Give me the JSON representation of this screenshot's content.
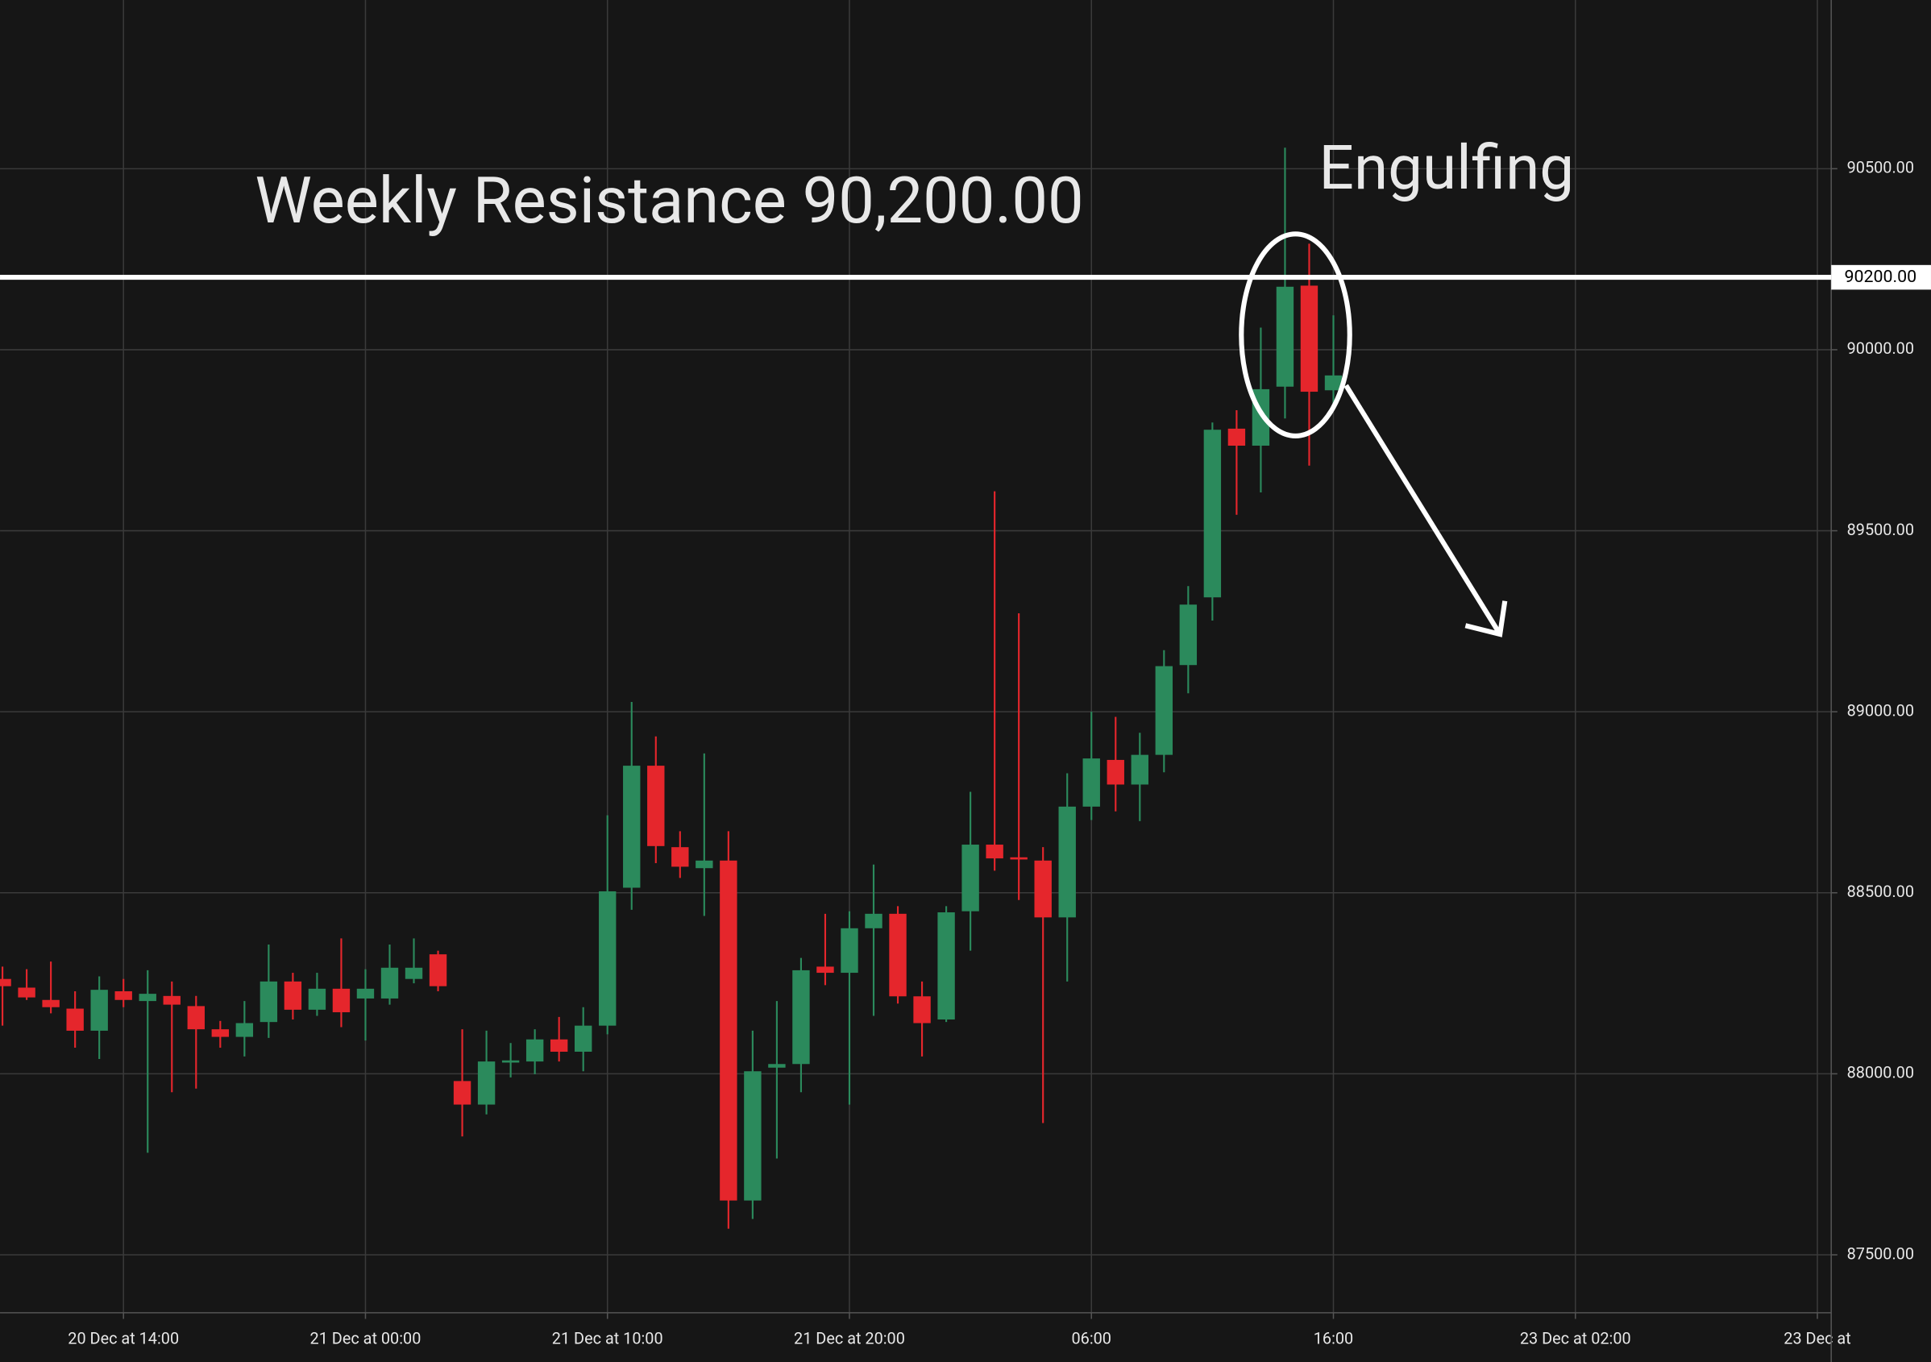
{
  "chart_data": {
    "type": "candlestick",
    "categories": [
      null,
      null,
      null,
      null,
      null,
      "20 Dec at 14:00",
      null,
      null,
      null,
      null,
      null,
      null,
      null,
      null,
      null,
      "21 Dec at 00:00",
      null,
      null,
      null,
      null,
      null,
      null,
      null,
      null,
      null,
      "21 Dec at 10:00",
      null,
      null,
      null,
      null,
      null,
      null,
      null,
      null,
      null,
      "21 Dec at 20:00",
      null,
      null,
      null,
      null,
      null,
      null,
      null,
      null,
      null,
      "06:00",
      null,
      null,
      null,
      null,
      null,
      null,
      null,
      null,
      null,
      "16:00",
      null,
      null,
      null,
      null,
      null,
      null,
      null,
      null,
      null,
      "23 Dec at 02:00",
      null,
      null,
      null,
      null,
      null,
      null,
      null,
      null,
      null,
      "23 Dec at"
    ],
    "open": [
      88262,
      88238,
      88204,
      88180,
      88119,
      88228,
      88201,
      88215,
      88187,
      88123,
      88102,
      88143,
      88255,
      88177,
      88235,
      88208,
      88208,
      88262,
      88330,
      87980,
      87915,
      88031,
      88034,
      88095,
      88061,
      88133,
      88514,
      88851,
      88626,
      88568,
      88589,
      87650,
      88017,
      88027,
      88296,
      88279,
      88402,
      88442,
      88214,
      88150,
      88449,
      88633,
      88598,
      88589,
      88432,
      88738,
      88867,
      88799,
      88881,
      89129,
      89316,
      89782,
      89735,
      89898,
      90177,
      89888,
      null,
      null,
      null,
      null,
      null,
      null,
      null,
      null,
      null,
      null,
      null,
      null,
      null,
      null,
      null,
      null,
      null,
      null,
      null,
      null
    ],
    "high": [
      88296,
      88289,
      88310,
      88228,
      88269,
      88262,
      88286,
      88255,
      88215,
      88146,
      88201,
      88357,
      88279,
      88279,
      88374,
      88289,
      88357,
      88374,
      88340,
      88123,
      88119,
      88085,
      88123,
      88157,
      88184,
      88714,
      89027,
      88932,
      88670,
      88885,
      88670,
      88119,
      88201,
      88320,
      88442,
      88449,
      88578,
      88463,
      88255,
      88463,
      88779,
      89609,
      89272,
      88626,
      88830,
      89000,
      88986,
      88942,
      89170,
      89347,
      89799,
      89833,
      90061,
      90558,
      90293,
      90095,
      null,
      null,
      null,
      null,
      null,
      null,
      null,
      null,
      null,
      null,
      null,
      null,
      null,
      null,
      null,
      null,
      null,
      null,
      null,
      null
    ],
    "low": [
      88133,
      88204,
      88167,
      88072,
      88041,
      88184,
      87782,
      87949,
      87959,
      88072,
      88048,
      88099,
      88150,
      88160,
      88129,
      88092,
      88191,
      88250,
      88228,
      87827,
      87888,
      87990,
      87999,
      88034,
      88007,
      88109,
      88453,
      88582,
      88541,
      88436,
      87572,
      87599,
      87766,
      87949,
      88245,
      87915,
      88160,
      88194,
      88048,
      88143,
      88340,
      88561,
      88480,
      87864,
      88255,
      88701,
      88725,
      88698,
      88833,
      89051,
      89252,
      89544,
      89606,
      89810,
      89680,
      89844,
      null,
      null,
      null,
      null,
      null,
      null,
      null,
      null,
      null,
      null,
      null,
      null,
      null,
      null,
      null,
      null,
      null,
      null,
      null,
      null
    ],
    "close": [
      88242,
      88211,
      88184,
      88119,
      88232,
      88204,
      88221,
      88191,
      88123,
      88102,
      88140,
      88255,
      88177,
      88235,
      88170,
      88235,
      88293,
      88293,
      88242,
      87915,
      88034,
      88037,
      88095,
      88061,
      88133,
      88504,
      88851,
      88629,
      88572,
      88589,
      87650,
      88007,
      88027,
      88286,
      88279,
      88402,
      88442,
      88214,
      88140,
      88446,
      88633,
      88595,
      88592,
      88432,
      88738,
      88871,
      88799,
      88881,
      89126,
      89296,
      89779,
      89735,
      89891,
      90174,
      89884,
      89929,
      null,
      null,
      null,
      null,
      null,
      null,
      null,
      null,
      null,
      null,
      null,
      null,
      null,
      null,
      null,
      null,
      null,
      null,
      null,
      null
    ],
    "up_color": "#2b8a5c",
    "down_color": "#e5262c",
    "ylim": [
      87340,
      90966
    ],
    "yticks": [
      {
        "value": 87500,
        "label": "87500.00"
      },
      {
        "value": 88000,
        "label": "88000.00"
      },
      {
        "value": 88500,
        "label": "88500.00"
      },
      {
        "value": 89000,
        "label": "89000.00"
      },
      {
        "value": 89500,
        "label": "89500.00"
      },
      {
        "value": 90000,
        "label": "90000.00"
      },
      {
        "value": 90500,
        "label": "90500.00"
      }
    ],
    "grid": true,
    "resistance": {
      "value": 90200,
      "label": "90200.00"
    },
    "annotations": [
      "Weekly Resistance 90,200.00",
      "Engulfing"
    ]
  }
}
